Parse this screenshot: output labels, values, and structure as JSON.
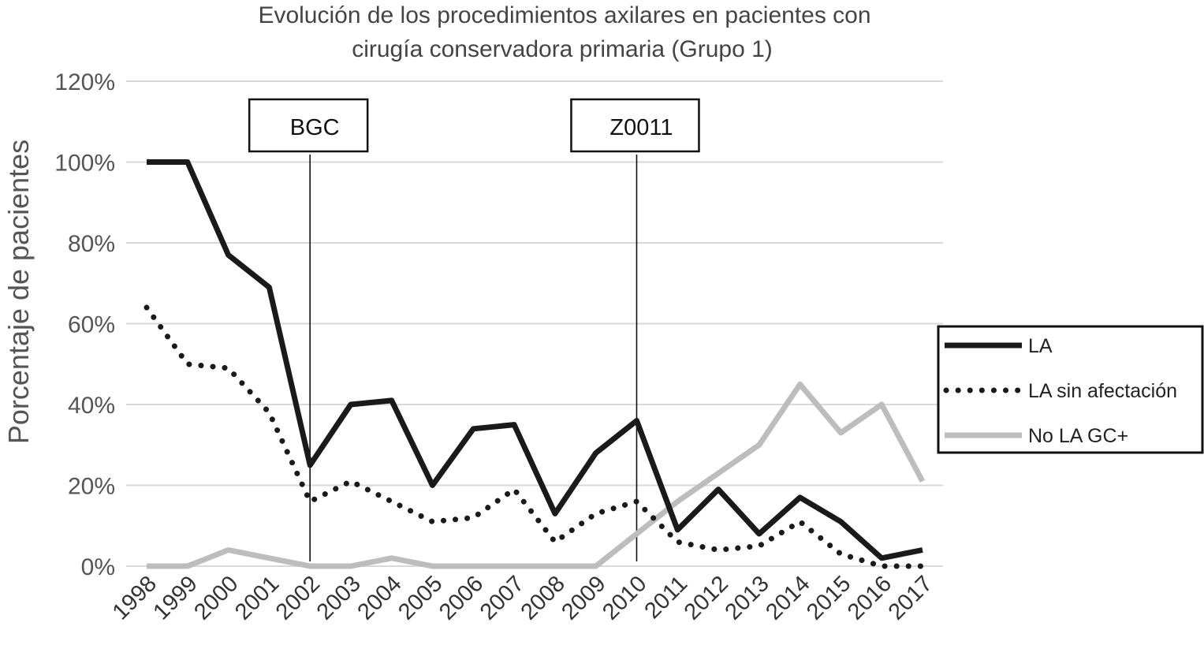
{
  "chart_data": {
    "type": "line",
    "title_lines": [
      "Evolución de los procedimientos axilares en pacientes con",
      "cirugía conservadora primaria (Grupo 1)"
    ],
    "xlabel": "",
    "ylabel": "Porcentaje de pacientes",
    "ylim": [
      0,
      120
    ],
    "yticks": [
      "0%",
      "20%",
      "40%",
      "60%",
      "80%",
      "100%",
      "120%"
    ],
    "y_tick_values": [
      0,
      20,
      40,
      60,
      80,
      100,
      120
    ],
    "grid": true,
    "legend_position": "right",
    "categories": [
      "1998",
      "1999",
      "2000",
      "2001",
      "2002",
      "2003",
      "2004",
      "2005",
      "2006",
      "2007",
      "2008",
      "2009",
      "2010",
      "2011",
      "2012",
      "2013",
      "2014",
      "2015",
      "2016",
      "2017"
    ],
    "series": [
      {
        "name": "LA",
        "style": "solid",
        "color": "#1a1a1a",
        "values": [
          100,
          100,
          77,
          69,
          25,
          40,
          41,
          20,
          34,
          35,
          13,
          28,
          36,
          9,
          19,
          8,
          17,
          11,
          2,
          4
        ]
      },
      {
        "name": "LA sin afectación",
        "style": "dotted",
        "color": "#1a1a1a",
        "values": [
          64,
          50,
          49,
          38,
          16,
          21,
          16,
          11,
          12,
          19,
          6,
          13,
          16,
          6,
          4,
          5,
          11,
          3,
          0,
          0
        ]
      },
      {
        "name": "No LA GC+",
        "style": "solid",
        "color": "#bdbdbd",
        "values": [
          0,
          0,
          4,
          2,
          0,
          0,
          2,
          0,
          0,
          0,
          0,
          0,
          8,
          16,
          23,
          30,
          45,
          33,
          40,
          21
        ]
      }
    ],
    "annotations": [
      {
        "label": "BGC",
        "x": "2002"
      },
      {
        "label": "Z0011",
        "x": "2010"
      }
    ]
  }
}
